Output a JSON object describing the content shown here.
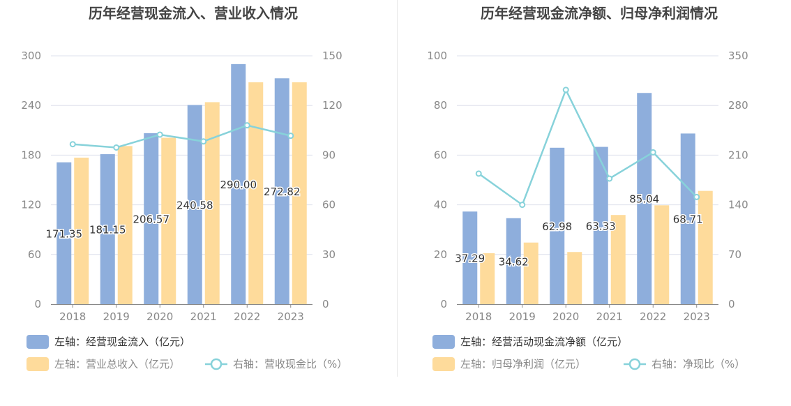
{
  "colors": {
    "bar1": "#8eaedc",
    "bar2": "#fedb9b",
    "line": "#87d2da",
    "axis_text": "#888888",
    "grid": "#dde0ec",
    "title": "#444444",
    "label": "#333333"
  },
  "chart_data": [
    {
      "type": "bar",
      "title": "历年经营现金流入、营业收入情况",
      "categories": [
        "2018",
        "2019",
        "2020",
        "2021",
        "2022",
        "2023"
      ],
      "y_left": {
        "ticks": [
          "0",
          "60",
          "120",
          "180",
          "240",
          "300"
        ],
        "min": 0,
        "max": 300
      },
      "y_right": {
        "ticks": [
          "0",
          "30",
          "60",
          "90",
          "120",
          "150"
        ],
        "min": 0,
        "max": 150
      },
      "series": [
        {
          "name": "左轴：经营现金流入（亿元）",
          "kind": "bar",
          "axis": "left",
          "values": [
            171.35,
            181.15,
            206.57,
            240.58,
            290.0,
            272.82
          ],
          "labels": [
            "171.35",
            "181.15",
            "206.57",
            "240.58",
            "290.00",
            "272.82"
          ]
        },
        {
          "name": "左轴：营业总收入（亿元）",
          "kind": "bar",
          "axis": "left",
          "values": [
            177,
            191,
            201,
            244,
            268,
            268
          ]
        },
        {
          "name": "右轴：营收现金比（%）",
          "kind": "line",
          "axis": "right",
          "values": [
            96.6,
            94.6,
            102.4,
            98.3,
            108.0,
            101.7
          ]
        }
      ],
      "legend_position": "bottom-left"
    },
    {
      "type": "bar",
      "title": "历年经营现金流净额、归母净利润情况",
      "categories": [
        "2018",
        "2019",
        "2020",
        "2021",
        "2022",
        "2023"
      ],
      "y_left": {
        "ticks": [
          "0",
          "20",
          "40",
          "60",
          "80",
          "100"
        ],
        "min": 0,
        "max": 100
      },
      "y_right": {
        "ticks": [
          "0",
          "70",
          "140",
          "210",
          "280",
          "350"
        ],
        "min": 0,
        "max": 350
      },
      "series": [
        {
          "name": "左轴：经营活动现金流净额（亿元）",
          "kind": "bar",
          "axis": "left",
          "values": [
            37.29,
            34.62,
            62.98,
            63.33,
            85.04,
            68.71
          ],
          "labels": [
            "37.29",
            "34.62",
            "62.98",
            "63.33",
            "85.04",
            "68.71"
          ]
        },
        {
          "name": "左轴：归母净利润（亿元）",
          "kind": "bar",
          "axis": "left",
          "values": [
            20.5,
            24.8,
            21.0,
            35.9,
            39.8,
            45.6
          ]
        },
        {
          "name": "右轴：净现比（%）",
          "kind": "line",
          "axis": "right",
          "values": [
            184,
            140,
            302,
            177,
            214,
            151
          ]
        }
      ],
      "legend_position": "bottom-left"
    }
  ]
}
